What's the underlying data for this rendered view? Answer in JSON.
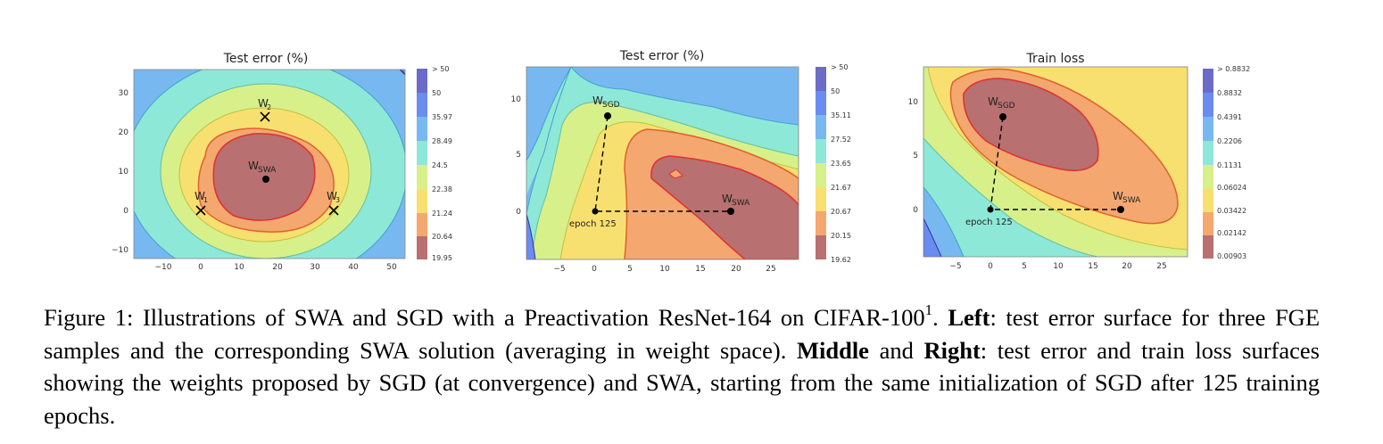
{
  "panels": [
    {
      "title": "Test error (%)",
      "x_ticks": [
        "−10",
        "0",
        "10",
        "20",
        "30",
        "40",
        "50"
      ],
      "y_ticks": [
        "30",
        "20",
        "10",
        "0",
        "−10"
      ],
      "colorbar": [
        "> 50",
        "50",
        "35.97",
        "28.49",
        "24.5",
        "22.38",
        "21.24",
        "20.64",
        "19.95"
      ],
      "points": [
        {
          "label": "W",
          "sub": "1",
          "marker": "x"
        },
        {
          "label": "W",
          "sub": "2",
          "marker": "x"
        },
        {
          "label": "W",
          "sub": "3",
          "marker": "x"
        },
        {
          "label": "W",
          "sub": "SWA",
          "marker": "dot"
        }
      ]
    },
    {
      "title": "Test error (%)",
      "x_ticks": [
        "−5",
        "0",
        "5",
        "10",
        "15",
        "20",
        "25"
      ],
      "y_ticks": [
        "10",
        "5",
        "0"
      ],
      "colorbar": [
        "> 50",
        "50",
        "35.11",
        "27.52",
        "23.65",
        "21.67",
        "20.67",
        "20.15",
        "19.62"
      ],
      "points": [
        {
          "label": "W",
          "sub": "SGD",
          "marker": "dot"
        },
        {
          "label": "epoch 125",
          "sub": "",
          "marker": "dot"
        },
        {
          "label": "W",
          "sub": "SWA",
          "marker": "dot"
        }
      ]
    },
    {
      "title": "Train loss",
      "x_ticks": [
        "−5",
        "0",
        "5",
        "10",
        "15",
        "20",
        "25"
      ],
      "y_ticks": [
        "10",
        "5",
        "0"
      ],
      "colorbar": [
        "> 0.8832",
        "0.8832",
        "0.4391",
        "0.2206",
        "0.1131",
        "0.06024",
        "0.03422",
        "0.02142",
        "0.00903"
      ],
      "points": [
        {
          "label": "W",
          "sub": "SGD",
          "marker": "dot"
        },
        {
          "label": "epoch 125",
          "sub": "",
          "marker": "dot"
        },
        {
          "label": "W",
          "sub": "SWA",
          "marker": "dot"
        }
      ]
    }
  ],
  "colors": [
    "#6b6bc8",
    "#6a8cf0",
    "#78b8f0",
    "#8ee8d8",
    "#d8f08a",
    "#f8e070",
    "#f4a870",
    "#b87070"
  ],
  "caption": {
    "lead": "Figure 1: Illustrations of SWA and SGD with a Preactivation ResNet-164 on CIFAR-100",
    "footnote": "1",
    "after_footnote": ". ",
    "left_bold": "Left",
    "left_text": ": test error surface for three FGE samples and the corresponding SWA solution (averaging in weight space). ",
    "middle_bold": "Middle",
    "and": " and ",
    "right_bold": "Right",
    "right_text": ": test error and train loss surfaces showing the weights proposed by SGD (at convergence) and SWA, starting from the same initialization of SGD after 125 training epochs."
  }
}
